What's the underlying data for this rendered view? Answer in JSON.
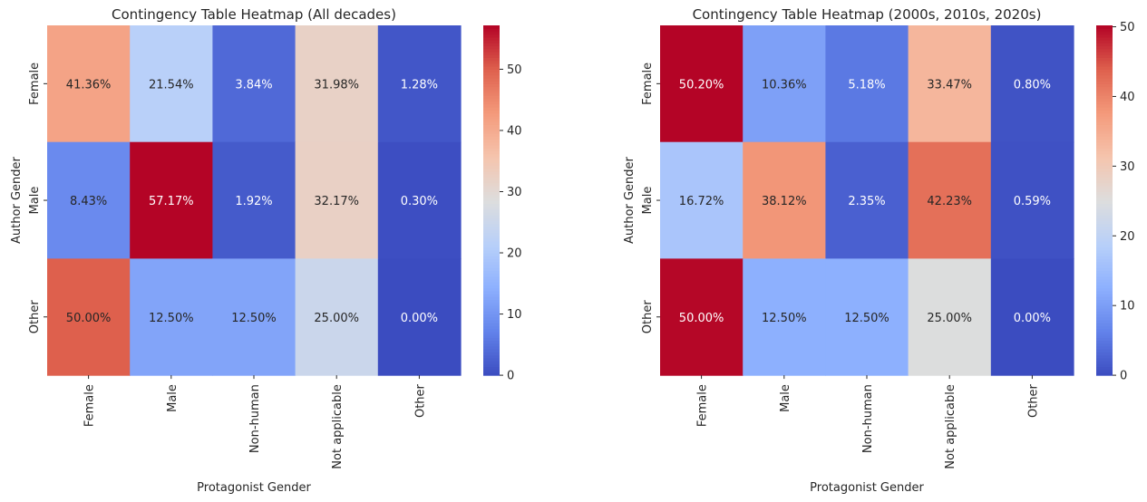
{
  "chart_data": [
    {
      "type": "heatmap",
      "title": "Contingency Table Heatmap (All decades)",
      "xlabel": "Protagonist Gender",
      "ylabel": "Author Gender",
      "x_categories": [
        "Female",
        "Male",
        "Non-human",
        "Not applicable",
        "Other"
      ],
      "y_categories": [
        "Female",
        "Male",
        "Other"
      ],
      "values": [
        [
          41.36,
          21.54,
          3.84,
          31.98,
          1.28
        ],
        [
          8.43,
          57.17,
          1.92,
          32.17,
          0.3
        ],
        [
          50.0,
          12.5,
          12.5,
          25.0,
          0.0
        ]
      ],
      "cell_labels": [
        [
          "41.36%",
          "21.54%",
          "3.84%",
          "31.98%",
          "1.28%"
        ],
        [
          "8.43%",
          "57.17%",
          "1.92%",
          "32.17%",
          "0.30%"
        ],
        [
          "50.00%",
          "12.50%",
          "12.50%",
          "25.00%",
          "0.00%"
        ]
      ],
      "colormap": "coolwarm",
      "vmin": 0,
      "vmax": 57.17,
      "colorbar_ticks": [
        0,
        10,
        20,
        30,
        40,
        50
      ]
    },
    {
      "type": "heatmap",
      "title": "Contingency Table Heatmap (2000s, 2010s, 2020s)",
      "xlabel": "Protagonist Gender",
      "ylabel": "Author Gender",
      "x_categories": [
        "Female",
        "Male",
        "Non-human",
        "Not applicable",
        "Other"
      ],
      "y_categories": [
        "Female",
        "Male",
        "Other"
      ],
      "values": [
        [
          50.2,
          10.36,
          5.18,
          33.47,
          0.8
        ],
        [
          16.72,
          38.12,
          2.35,
          42.23,
          0.59
        ],
        [
          50.0,
          12.5,
          12.5,
          25.0,
          0.0
        ]
      ],
      "cell_labels": [
        [
          "50.20%",
          "10.36%",
          "5.18%",
          "33.47%",
          "0.80%"
        ],
        [
          "16.72%",
          "38.12%",
          "2.35%",
          "42.23%",
          "0.59%"
        ],
        [
          "50.00%",
          "12.50%",
          "12.50%",
          "25.00%",
          "0.00%"
        ]
      ],
      "colormap": "coolwarm",
      "vmin": 0,
      "vmax": 50.2,
      "colorbar_ticks": [
        0,
        10,
        20,
        30,
        40,
        50
      ]
    }
  ]
}
